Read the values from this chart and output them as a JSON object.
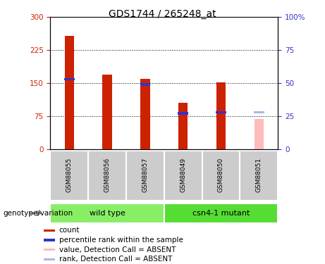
{
  "title": "GDS1744 / 265248_at",
  "samples": [
    "GSM88055",
    "GSM88056",
    "GSM88057",
    "GSM88049",
    "GSM88050",
    "GSM88051"
  ],
  "count_values": [
    258,
    170,
    160,
    105,
    152,
    null
  ],
  "rank_values": [
    53,
    null,
    49,
    27,
    28,
    null
  ],
  "absent_count": 68,
  "absent_rank": 28,
  "absent_sample_idx": 5,
  "ylim_left": [
    0,
    300
  ],
  "ylim_right": [
    0,
    100
  ],
  "yticks_left": [
    0,
    75,
    150,
    225,
    300
  ],
  "yticks_right": [
    0,
    25,
    50,
    75,
    100
  ],
  "bar_color_present": "#cc2200",
  "bar_color_absent": "#ffbbbb",
  "rank_color_present": "#3333cc",
  "rank_color_absent": "#aabbdd",
  "bar_width": 0.25,
  "group1_label": "wild type",
  "group2_label": "csn4-1 mutant",
  "group1_color": "#88ee66",
  "group2_color": "#55dd33",
  "group_bg_color": "#cccccc",
  "legend_items": [
    {
      "label": "count",
      "color": "#cc2200"
    },
    {
      "label": "percentile rank within the sample",
      "color": "#3333cc"
    },
    {
      "label": "value, Detection Call = ABSENT",
      "color": "#ffbbbb"
    },
    {
      "label": "rank, Detection Call = ABSENT",
      "color": "#aabbdd"
    }
  ],
  "genotype_label": "genotype/variation",
  "title_fontsize": 10,
  "tick_fontsize": 7.5,
  "label_fontsize": 7.5
}
